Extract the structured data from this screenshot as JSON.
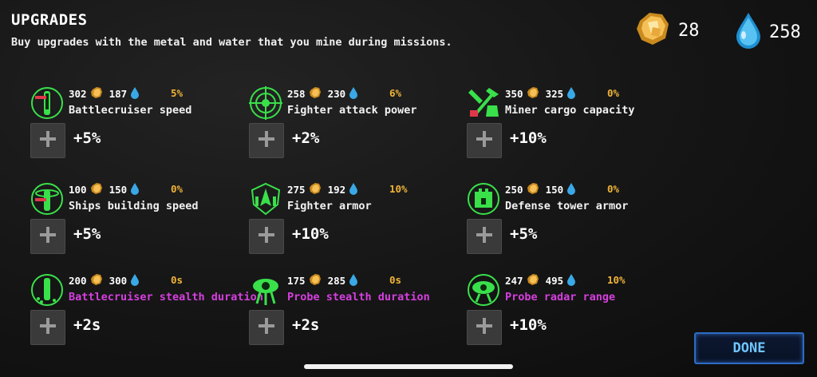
{
  "header": {
    "title": "UPGRADES",
    "subtitle": "Buy upgrades with the metal and water that you mine during missions."
  },
  "resources": {
    "metal": "28",
    "water": "258"
  },
  "colors": {
    "accent_green": "#39e04a",
    "percent_orange": "#f0b437",
    "pink": "#d63fe0",
    "done_blue": "#6ec6ff"
  },
  "upgrades": [
    {
      "icon": "battlecruiser-speed-icon",
      "metal": "302",
      "water": "187",
      "pct": "5%",
      "name": "Battlecruiser speed",
      "bonus": "+5%"
    },
    {
      "icon": "fighter-attack-icon",
      "metal": "258",
      "water": "230",
      "pct": "6%",
      "name": "Fighter attack power",
      "bonus": "+2%"
    },
    {
      "icon": "miner-cargo-icon",
      "metal": "350",
      "water": "325",
      "pct": "0%",
      "name": "Miner cargo capacity",
      "bonus": "+10%"
    },
    {
      "icon": "ships-building-icon",
      "metal": "100",
      "water": "150",
      "pct": "0%",
      "name": "Ships building speed",
      "bonus": "+5%"
    },
    {
      "icon": "fighter-armor-icon",
      "metal": "275",
      "water": "192",
      "pct": "10%",
      "name": "Fighter armor",
      "bonus": "+10%"
    },
    {
      "icon": "defense-tower-icon",
      "metal": "250",
      "water": "150",
      "pct": "0%",
      "name": "Defense tower armor",
      "bonus": "+5%"
    },
    {
      "icon": "battlecruiser-stealth-icon",
      "metal": "200",
      "water": "300",
      "pct": "0s",
      "name": "Battlecruiser stealth duration",
      "bonus": "+2s"
    },
    {
      "icon": "probe-stealth-icon",
      "metal": "175",
      "water": "285",
      "pct": "0s",
      "name": "Probe stealth duration",
      "bonus": "+2s"
    },
    {
      "icon": "probe-radar-icon",
      "metal": "247",
      "water": "495",
      "pct": "10%",
      "name": "Probe radar range",
      "bonus": "+10%"
    }
  ],
  "done_label": "DONE"
}
